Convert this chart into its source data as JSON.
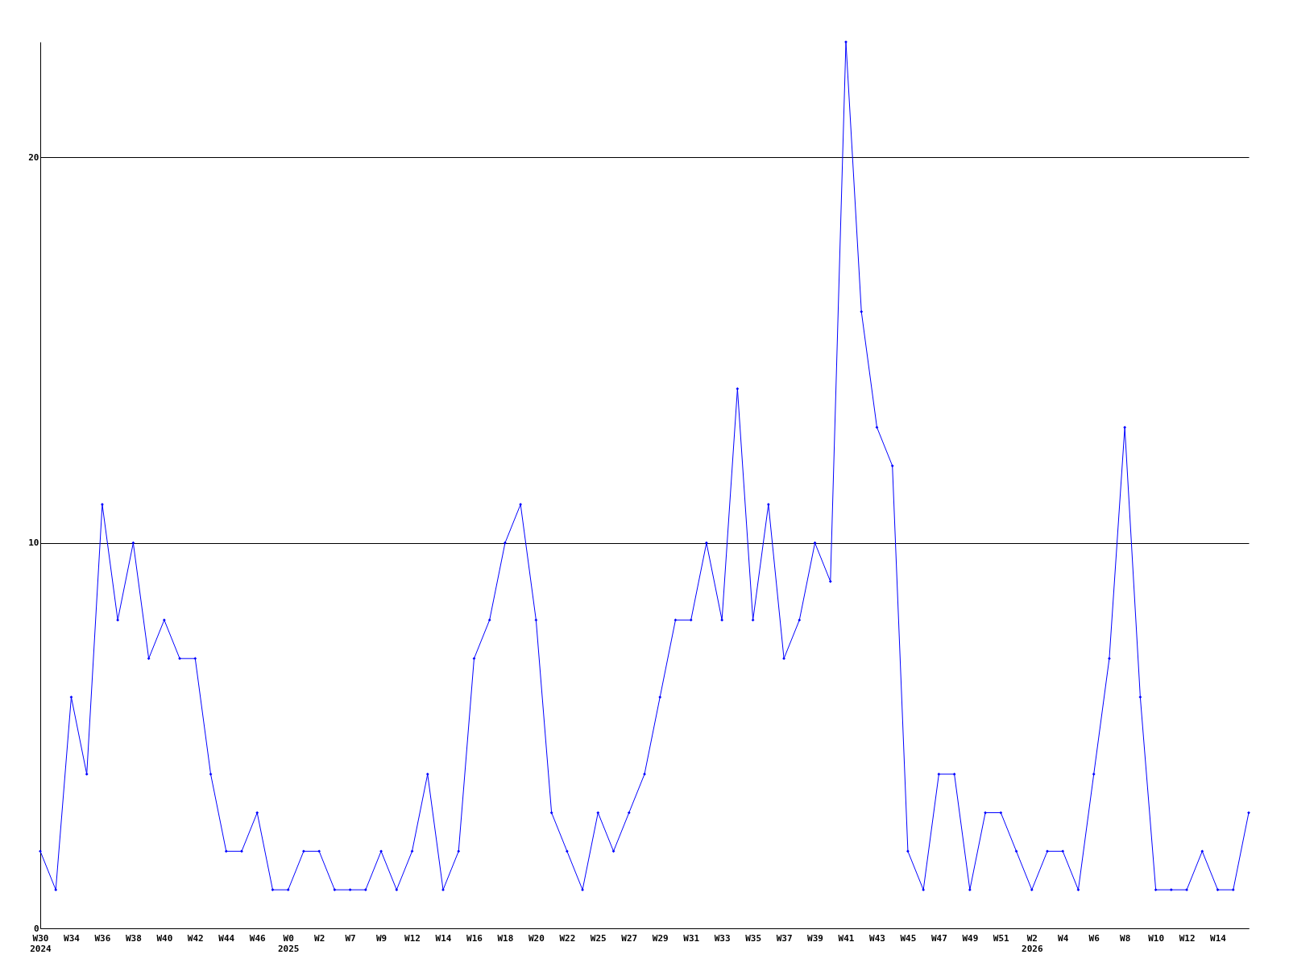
{
  "chart_data": {
    "type": "line",
    "categories": [
      "W30\n2024",
      null,
      "W34",
      null,
      "W36",
      null,
      "W38",
      null,
      "W40",
      null,
      "W42",
      null,
      "W44",
      null,
      "W46",
      null,
      "W0\n2025",
      null,
      "W2",
      null,
      "W7",
      null,
      "W9",
      null,
      "W12",
      null,
      "W14",
      null,
      "W16",
      null,
      "W18",
      null,
      "W20",
      null,
      "W22",
      null,
      "W25",
      null,
      "W27",
      null,
      "W29",
      null,
      "W31",
      null,
      "W33",
      null,
      "W35",
      null,
      "W37",
      null,
      "W39",
      null,
      "W41",
      null,
      "W43",
      null,
      "W45",
      null,
      "W47",
      null,
      "W49",
      null,
      "W51",
      null,
      "W2\n2026",
      null,
      "W4",
      null,
      "W6",
      null,
      "W8",
      null,
      "W10",
      null,
      "W12",
      null,
      "W14",
      null,
      null
    ],
    "series": [
      {
        "color": "#0000ff",
        "values": [
          2,
          1,
          6,
          4,
          11,
          8,
          10,
          7,
          8,
          7,
          7,
          4,
          2,
          2,
          3,
          1,
          1,
          2,
          2,
          1,
          1,
          1,
          2,
          1,
          2,
          4,
          1,
          2,
          7,
          8,
          10,
          11,
          8,
          3,
          2,
          1,
          3,
          2,
          3,
          4,
          6,
          8,
          8,
          10,
          8,
          14,
          8,
          11,
          7,
          8,
          10,
          9,
          23,
          16,
          13,
          12,
          2,
          1,
          4,
          4,
          1,
          3,
          3,
          2,
          1,
          2,
          2,
          1,
          4,
          7,
          13,
          6,
          1,
          1,
          1,
          2,
          1,
          1,
          3
        ]
      }
    ],
    "ylim": [
      0,
      23
    ],
    "yticks": [
      0,
      10,
      20
    ],
    "grid": "y",
    "marker": "diamond",
    "line_style": "solid"
  }
}
